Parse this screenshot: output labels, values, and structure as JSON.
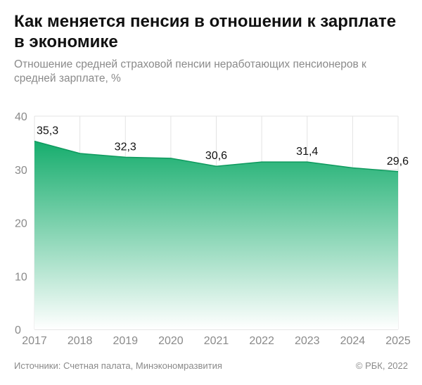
{
  "title": "Как меняется пенсия в отношении к зарплате в экономике",
  "subtitle": "Отношение средней страховой пенсии неработающих пенсионеров к средней зарплате, %",
  "source": "Источники: Счетная палата, Минэкономразвития",
  "copyright": "© РБК, 2022",
  "colors": {
    "area_top": "#16ad6d",
    "area_bottom": "#ffffff",
    "line": "#0e9a5e",
    "grid": "#e3e3e3",
    "axis": "#cfcfcf"
  },
  "chart_data": {
    "type": "area",
    "x": [
      "2017",
      "2018",
      "2019",
      "2020",
      "2021",
      "2022",
      "2023",
      "2024",
      "2025"
    ],
    "values": [
      35.3,
      33.0,
      32.3,
      32.1,
      30.6,
      31.4,
      31.4,
      30.3,
      29.6
    ],
    "data_labels": [
      {
        "index": 0,
        "text": "35,3"
      },
      {
        "index": 2,
        "text": "32,3"
      },
      {
        "index": 4,
        "text": "30,6"
      },
      {
        "index": 6,
        "text": "31,4"
      },
      {
        "index": 8,
        "text": "29,6"
      }
    ],
    "ylim": [
      0,
      40
    ],
    "yticks": [
      0,
      10,
      20,
      30,
      40
    ],
    "grid": true,
    "legend": "none"
  }
}
